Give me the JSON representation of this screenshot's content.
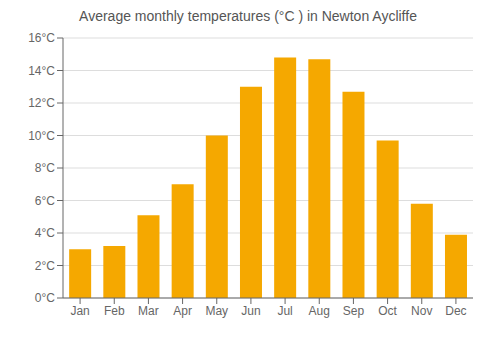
{
  "chart_data": {
    "type": "bar",
    "title": "Average monthly temperatures (°C ) in Newton Aycliffe",
    "categories": [
      "Jan",
      "Feb",
      "Mar",
      "Apr",
      "May",
      "Jun",
      "Jul",
      "Aug",
      "Sep",
      "Oct",
      "Nov",
      "Dec"
    ],
    "values": [
      3.0,
      3.2,
      5.1,
      7.0,
      10.0,
      13.0,
      14.8,
      14.7,
      12.7,
      9.7,
      5.8,
      3.9
    ],
    "color": "#F5A800",
    "ylim": [
      0,
      16
    ],
    "yticks": [
      {
        "value": 0,
        "label": "0°C"
      },
      {
        "value": 2,
        "label": "2°C"
      },
      {
        "value": 4,
        "label": "4°C"
      },
      {
        "value": 6,
        "label": "6°C"
      },
      {
        "value": 8,
        "label": "8°C"
      },
      {
        "value": 10,
        "label": "10°C"
      },
      {
        "value": 12,
        "label": "12°C"
      },
      {
        "value": 14,
        "label": "14°C"
      },
      {
        "value": 16,
        "label": "16°C"
      }
    ],
    "grid": true
  }
}
